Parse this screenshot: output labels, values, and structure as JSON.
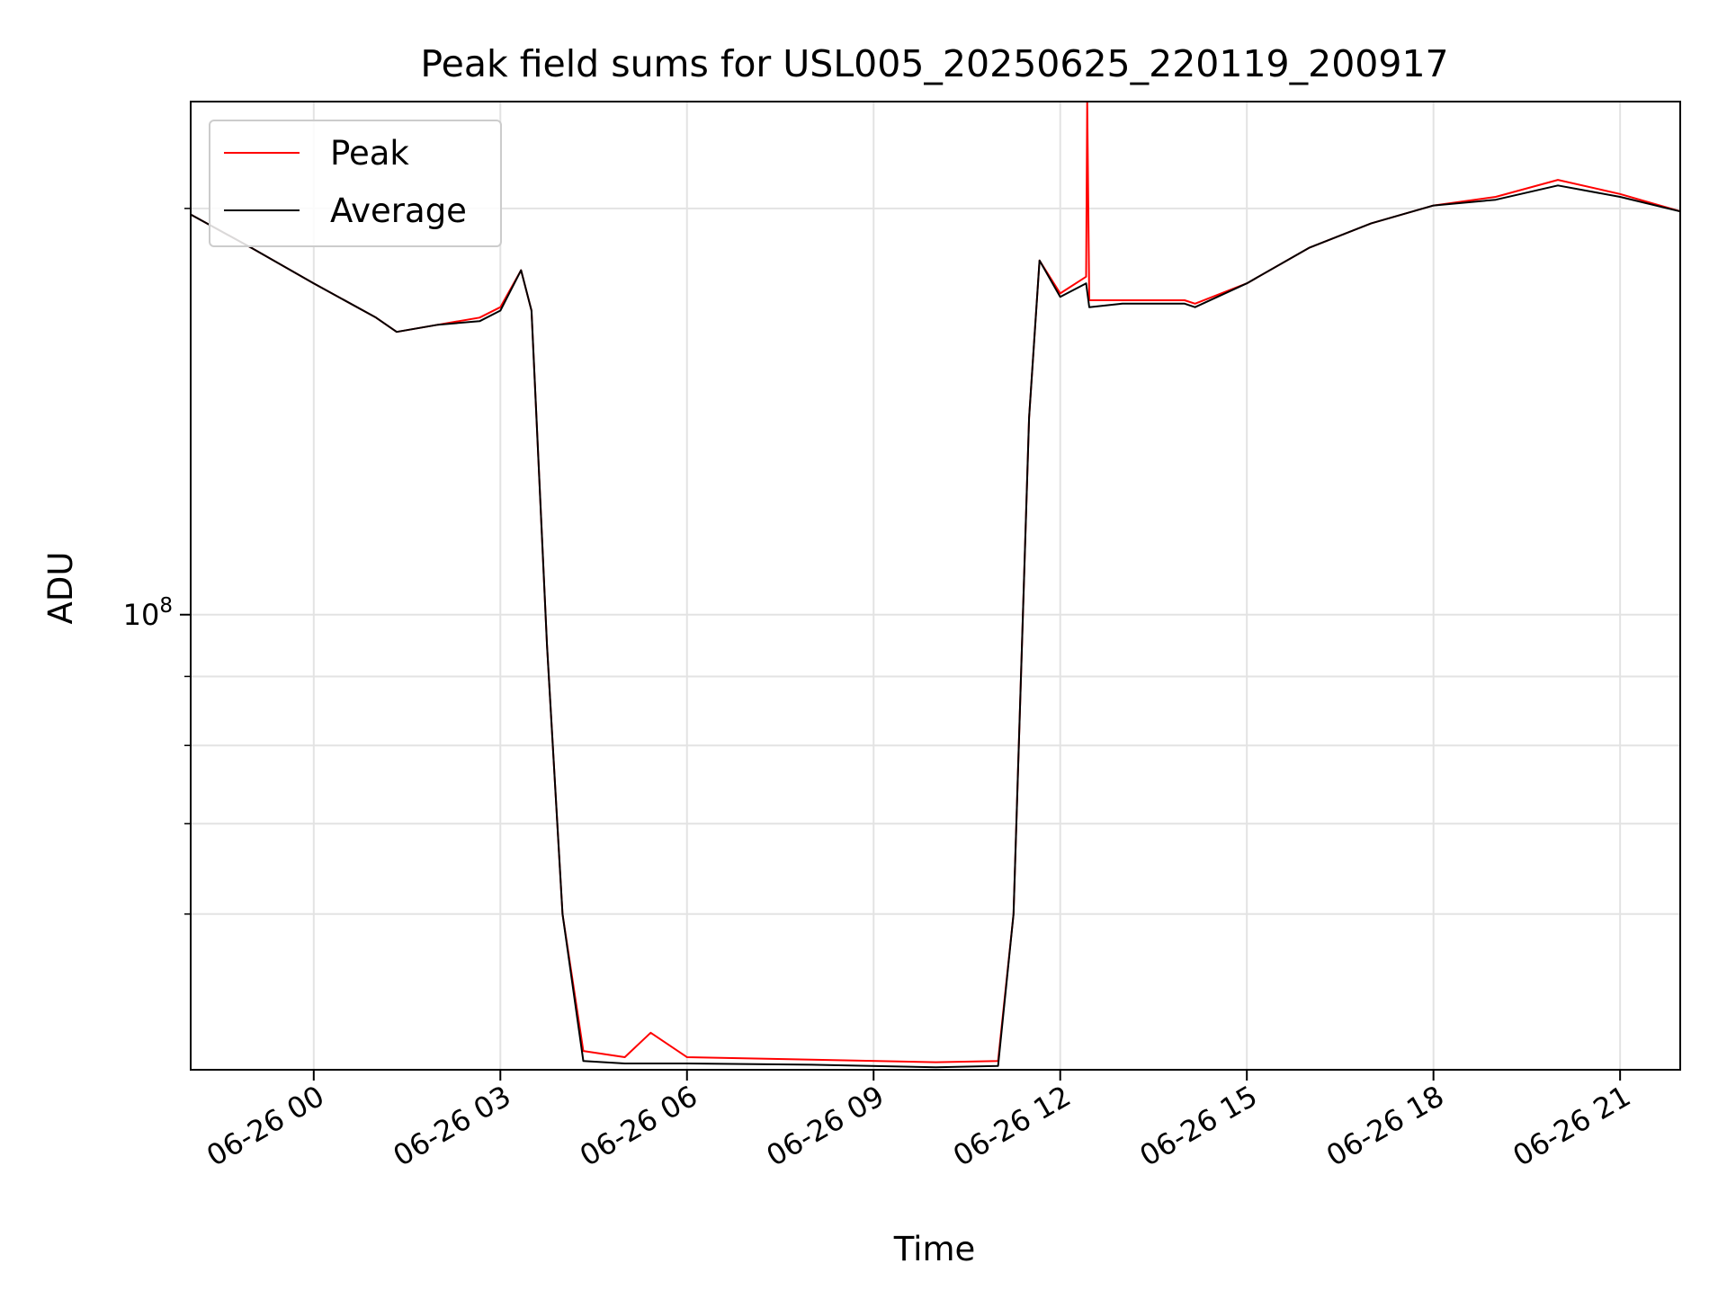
{
  "chart_data": {
    "type": "line",
    "title": "Peak field sums for USL005_20250625_220119_200917",
    "xlabel": "Time",
    "ylabel": "ADU",
    "x_axis": {
      "kind": "datetime",
      "range": [
        "2025-06-25T22:01:19",
        "2025-06-26T21:58:00"
      ],
      "ticks": [
        {
          "t": "2025-06-26T00:00",
          "label": "06-26 00"
        },
        {
          "t": "2025-06-26T03:00",
          "label": "06-26 03"
        },
        {
          "t": "2025-06-26T06:00",
          "label": "06-26 06"
        },
        {
          "t": "2025-06-26T09:00",
          "label": "06-26 09"
        },
        {
          "t": "2025-06-26T12:00",
          "label": "06-26 12"
        },
        {
          "t": "2025-06-26T15:00",
          "label": "06-26 15"
        },
        {
          "t": "2025-06-26T18:00",
          "label": "06-26 18"
        },
        {
          "t": "2025-06-26T21:00",
          "label": "06-26 21"
        }
      ]
    },
    "y_axis": {
      "scale": "log",
      "range": [
        46000000,
        240000000
      ],
      "major_ticks": [
        {
          "value": 100000000,
          "label": "10^8"
        }
      ],
      "minor_ticks": [
        60000000,
        70000000,
        80000000,
        90000000,
        200000000
      ]
    },
    "grid": true,
    "legend": {
      "placement": "top-left",
      "entries": [
        "Peak",
        "Average"
      ]
    },
    "colors": {
      "Peak": "#ff0000",
      "Average": "#000000"
    },
    "series": [
      {
        "name": "Peak",
        "points": [
          [
            "2025-06-25T22:01",
            198000000
          ],
          [
            "2025-06-25T23:00",
            187000000
          ],
          [
            "2025-06-26T00:00",
            176000000
          ],
          [
            "2025-06-26T01:00",
            166000000
          ],
          [
            "2025-06-26T01:20",
            162000000
          ],
          [
            "2025-06-26T02:00",
            164000000
          ],
          [
            "2025-06-26T02:40",
            166000000
          ],
          [
            "2025-06-26T03:00",
            169000000
          ],
          [
            "2025-06-26T03:20",
            180000000
          ],
          [
            "2025-06-26T03:30",
            168000000
          ],
          [
            "2025-06-26T03:45",
            95000000
          ],
          [
            "2025-06-26T04:00",
            60000000
          ],
          [
            "2025-06-26T04:20",
            47500000
          ],
          [
            "2025-06-26T05:00",
            47000000
          ],
          [
            "2025-06-26T05:25",
            49000000
          ],
          [
            "2025-06-26T06:00",
            47000000
          ],
          [
            "2025-06-26T08:00",
            46800000
          ],
          [
            "2025-06-26T10:00",
            46600000
          ],
          [
            "2025-06-26T11:00",
            46700000
          ],
          [
            "2025-06-26T11:15",
            60000000
          ],
          [
            "2025-06-26T11:30",
            140000000
          ],
          [
            "2025-06-26T11:40",
            183000000
          ],
          [
            "2025-06-26T12:00",
            173000000
          ],
          [
            "2025-06-26T12:25",
            178000000
          ],
          [
            "2025-06-26T12:26",
            240000000
          ],
          [
            "2025-06-26T12:28",
            171000000
          ],
          [
            "2025-06-26T13:00",
            171000000
          ],
          [
            "2025-06-26T14:00",
            171000000
          ],
          [
            "2025-06-26T14:10",
            170000000
          ],
          [
            "2025-06-26T15:00",
            176000000
          ],
          [
            "2025-06-26T16:00",
            187000000
          ],
          [
            "2025-06-26T17:00",
            195000000
          ],
          [
            "2025-06-26T18:00",
            201000000
          ],
          [
            "2025-06-26T19:00",
            204000000
          ],
          [
            "2025-06-26T20:00",
            210000000
          ],
          [
            "2025-06-26T21:00",
            205000000
          ],
          [
            "2025-06-26T21:58",
            199000000
          ]
        ]
      },
      {
        "name": "Average",
        "points": [
          [
            "2025-06-25T22:01",
            198000000
          ],
          [
            "2025-06-25T23:00",
            187000000
          ],
          [
            "2025-06-26T00:00",
            176000000
          ],
          [
            "2025-06-26T01:00",
            166000000
          ],
          [
            "2025-06-26T01:20",
            162000000
          ],
          [
            "2025-06-26T02:00",
            164000000
          ],
          [
            "2025-06-26T02:40",
            165000000
          ],
          [
            "2025-06-26T03:00",
            168000000
          ],
          [
            "2025-06-26T03:20",
            180000000
          ],
          [
            "2025-06-26T03:30",
            168000000
          ],
          [
            "2025-06-26T03:45",
            95000000
          ],
          [
            "2025-06-26T04:00",
            60000000
          ],
          [
            "2025-06-26T04:20",
            46700000
          ],
          [
            "2025-06-26T05:00",
            46500000
          ],
          [
            "2025-06-26T06:00",
            46500000
          ],
          [
            "2025-06-26T08:00",
            46400000
          ],
          [
            "2025-06-26T10:00",
            46200000
          ],
          [
            "2025-06-26T11:00",
            46300000
          ],
          [
            "2025-06-26T11:15",
            60000000
          ],
          [
            "2025-06-26T11:30",
            140000000
          ],
          [
            "2025-06-26T11:40",
            183000000
          ],
          [
            "2025-06-26T12:00",
            172000000
          ],
          [
            "2025-06-26T12:25",
            176000000
          ],
          [
            "2025-06-26T12:28",
            169000000
          ],
          [
            "2025-06-26T13:00",
            170000000
          ],
          [
            "2025-06-26T14:00",
            170000000
          ],
          [
            "2025-06-26T14:10",
            169000000
          ],
          [
            "2025-06-26T15:00",
            176000000
          ],
          [
            "2025-06-26T16:00",
            187000000
          ],
          [
            "2025-06-26T17:00",
            195000000
          ],
          [
            "2025-06-26T18:00",
            201000000
          ],
          [
            "2025-06-26T19:00",
            203000000
          ],
          [
            "2025-06-26T20:00",
            208000000
          ],
          [
            "2025-06-26T21:00",
            204000000
          ],
          [
            "2025-06-26T21:58",
            199000000
          ]
        ]
      }
    ]
  }
}
